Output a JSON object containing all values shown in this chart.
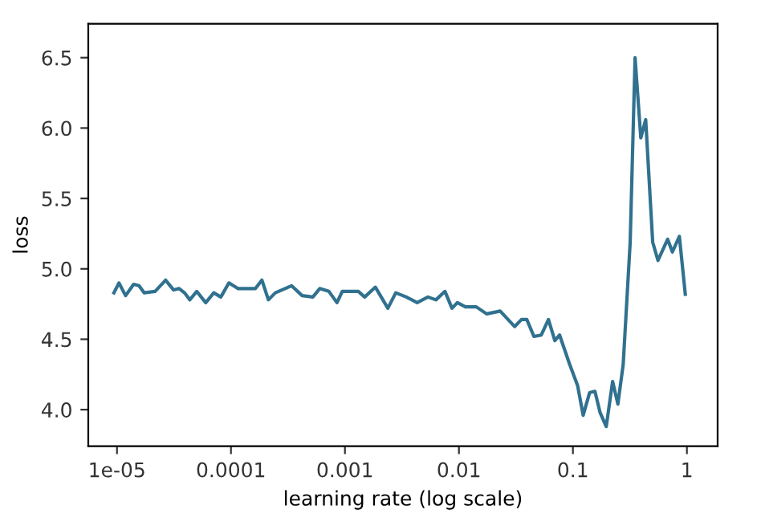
{
  "chart_data": {
    "type": "line",
    "xlabel": "learning rate (log scale)",
    "ylabel": "loss",
    "log": "x",
    "grid": false,
    "marker": "none",
    "line_style": "solid",
    "xlim": [
      5.6e-06,
      1.86
    ],
    "ylim": [
      3.74,
      6.74
    ],
    "xticks": [
      {
        "value": 1e-05,
        "label": "1e-05"
      },
      {
        "value": 0.0001,
        "label": "0.0001"
      },
      {
        "value": 0.001,
        "label": "0.001"
      },
      {
        "value": 0.01,
        "label": "0.01"
      },
      {
        "value": 0.1,
        "label": "0.1"
      },
      {
        "value": 1,
        "label": "1"
      }
    ],
    "yticks": [
      {
        "value": 4.0,
        "label": "4.0"
      },
      {
        "value": 4.5,
        "label": "4.5"
      },
      {
        "value": 5.0,
        "label": "5.0"
      },
      {
        "value": 5.5,
        "label": "5.5"
      },
      {
        "value": 6.0,
        "label": "6.0"
      },
      {
        "value": 6.5,
        "label": "6.5"
      }
    ],
    "series": [
      {
        "color": "#30718f",
        "x": [
          9.4e-06,
          1.04e-05,
          1.19e-05,
          1.4e-05,
          1.56e-05,
          1.73e-05,
          2.16e-05,
          2.67e-05,
          3.14e-05,
          3.51e-05,
          3.91e-05,
          4.35e-05,
          5.01e-05,
          6.01e-05,
          7.07e-05,
          8.15e-05,
          9.59e-05,
          0.000115,
          0.000143,
          0.000164,
          0.000187,
          0.000213,
          0.000245,
          0.00034,
          0.000421,
          0.000523,
          0.000601,
          0.000723,
          0.000851,
          0.000947,
          0.00131,
          0.00149,
          0.00185,
          0.00238,
          0.00279,
          0.00346,
          0.0043,
          0.00534,
          0.00629,
          0.00754,
          0.00869,
          0.00968,
          0.0114,
          0.0142,
          0.0175,
          0.023,
          0.0308,
          0.0354,
          0.0394,
          0.0455,
          0.0528,
          0.061,
          0.0694,
          0.0764,
          0.0938,
          0.11,
          0.123,
          0.14,
          0.156,
          0.173,
          0.196,
          0.223,
          0.248,
          0.276,
          0.318,
          0.351,
          0.394,
          0.435,
          0.501,
          0.557,
          0.678,
          0.746,
          0.859,
          0.968
        ],
        "values": [
          4.83,
          4.9,
          4.81,
          4.89,
          4.88,
          4.83,
          4.84,
          4.92,
          4.85,
          4.86,
          4.83,
          4.78,
          4.84,
          4.76,
          4.83,
          4.8,
          4.9,
          4.86,
          4.86,
          4.86,
          4.92,
          4.78,
          4.83,
          4.88,
          4.81,
          4.8,
          4.86,
          4.84,
          4.76,
          4.84,
          4.84,
          4.8,
          4.87,
          4.72,
          4.83,
          4.8,
          4.76,
          4.8,
          4.78,
          4.84,
          4.72,
          4.76,
          4.73,
          4.73,
          4.68,
          4.7,
          4.59,
          4.64,
          4.64,
          4.52,
          4.53,
          4.64,
          4.49,
          4.53,
          4.32,
          4.17,
          3.96,
          4.12,
          4.13,
          3.98,
          3.88,
          4.2,
          4.04,
          4.32,
          5.19,
          6.5,
          5.93,
          6.06,
          5.19,
          5.06,
          5.21,
          5.12,
          5.23,
          4.82
        ]
      }
    ]
  }
}
